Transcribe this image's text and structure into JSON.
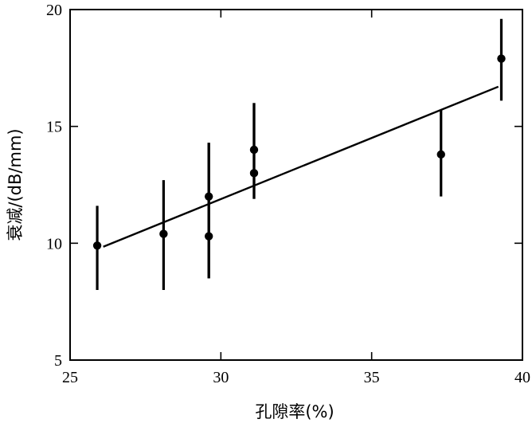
{
  "chart_data": {
    "type": "scatter",
    "title": "",
    "xlabel": "孔隙率(%)",
    "ylabel": "衰减/(dB/mm)",
    "xlim": [
      25,
      40
    ],
    "ylim": [
      5,
      20
    ],
    "x_ticks": [
      25,
      30,
      35,
      40
    ],
    "y_ticks": [
      5,
      10,
      15,
      20
    ],
    "grid": false,
    "legend": "none",
    "points": [
      {
        "x": 25.9,
        "y": 9.9,
        "err_low": 8.0,
        "err_high": 11.6
      },
      {
        "x": 28.1,
        "y": 10.4,
        "err_low": 8.0,
        "err_high": 12.7
      },
      {
        "x": 29.6,
        "y": 12.0,
        "err_low": 8.5,
        "err_high": 14.3
      },
      {
        "x": 29.6,
        "y": 10.3,
        "err_low": 8.5,
        "err_high": 14.3
      },
      {
        "x": 31.1,
        "y": 14.0,
        "err_low": 11.9,
        "err_high": 16.0
      },
      {
        "x": 31.1,
        "y": 13.0,
        "err_low": 11.9,
        "err_high": 16.0
      },
      {
        "x": 37.3,
        "y": 13.8,
        "err_low": 12.0,
        "err_high": 15.7
      },
      {
        "x": 39.3,
        "y": 17.9,
        "err_low": 16.1,
        "err_high": 19.6
      }
    ],
    "fit_line": [
      {
        "x": 26.1,
        "y": 9.85
      },
      {
        "x": 39.2,
        "y": 16.7
      }
    ]
  }
}
